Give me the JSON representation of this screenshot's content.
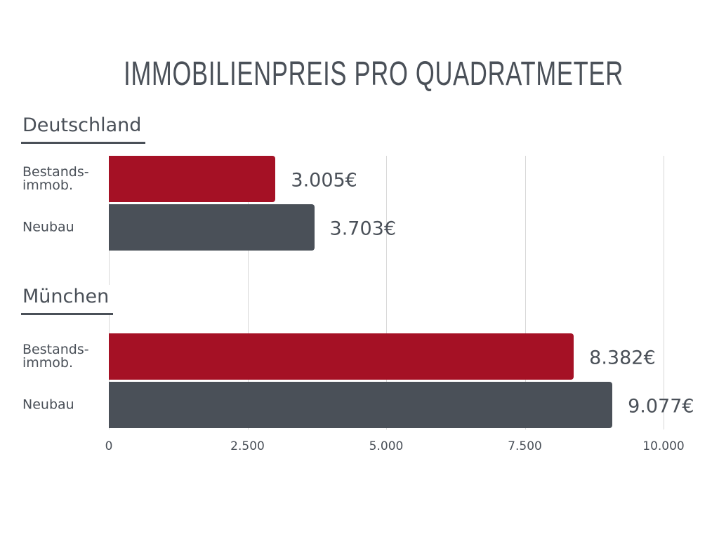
{
  "chart_data": {
    "type": "bar",
    "orientation": "horizontal",
    "title": "IMMOBILIENPREIS PRO QUADRATMETER",
    "groups": [
      {
        "name": "Deutschland",
        "categories": [
          "Bestands-\nimmob.",
          "Neubau"
        ],
        "values": [
          3005,
          3703
        ],
        "value_labels": [
          "3.005€",
          "3.703€"
        ]
      },
      {
        "name": "München",
        "categories": [
          "Bestands-\nimmob.",
          "Neubau"
        ],
        "values": [
          8382,
          9077
        ],
        "value_labels": [
          "8.382€",
          "9.077€"
        ]
      }
    ],
    "colors": [
      "#a51125",
      "#4a5058"
    ],
    "xlim": [
      0,
      10000
    ],
    "xticks": [
      0,
      {
        "value": 2500,
        "label": "2.500"
      },
      {
        "value": 5000,
        "label": "5.000"
      },
      {
        "value": 7500,
        "label": "7.500"
      },
      {
        "value": 10000,
        "label": "10.000"
      }
    ],
    "grid": true
  }
}
